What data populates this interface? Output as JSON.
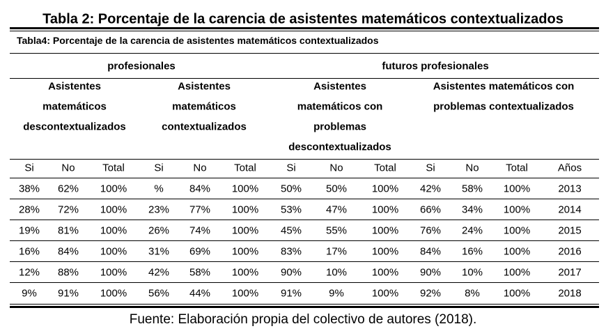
{
  "title": "Tabla 2: Porcentaje de la carencia de asistentes matemáticos contextualizados",
  "table": {
    "caption": "Tabla4: Porcentaje de la carencia de asistentes matemáticos  contextualizados",
    "top_headers": [
      "profesionales",
      "futuros profesionales"
    ],
    "group_headers": [
      [
        "Asistentes",
        "matemáticos",
        "descontextualizados"
      ],
      [
        "Asistentes",
        "matemáticos",
        "contextualizados"
      ],
      [
        "Asistentes",
        "matemáticos con",
        "problemas",
        "descontextualizados"
      ],
      [
        "Asistentes matemáticos con",
        "problemas contextualizados"
      ]
    ],
    "columns": [
      "Si",
      "No",
      "Total",
      "Si",
      "No",
      "Total",
      "Si",
      "No",
      "Total",
      "Si",
      "No",
      "Total",
      "Años"
    ],
    "rows": [
      [
        "38%",
        "62%",
        "100%",
        "%",
        "84%",
        "100%",
        "50%",
        "50%",
        "100%",
        "42%",
        "58%",
        "100%",
        "2013"
      ],
      [
        "28%",
        "72%",
        "100%",
        "23%",
        "77%",
        "100%",
        "53%",
        "47%",
        "100%",
        "66%",
        "34%",
        "100%",
        "2014"
      ],
      [
        "19%",
        "81%",
        "100%",
        "26%",
        "74%",
        "100%",
        "45%",
        "55%",
        "100%",
        "76%",
        "24%",
        "100%",
        "2015"
      ],
      [
        "16%",
        "84%",
        "100%",
        "31%",
        "69%",
        "100%",
        "83%",
        "17%",
        "100%",
        "84%",
        "16%",
        "100%",
        "2016"
      ],
      [
        "12%",
        "88%",
        "100%",
        "42%",
        "58%",
        "100%",
        "90%",
        "10%",
        "100%",
        "90%",
        "10%",
        "100%",
        "2017"
      ],
      [
        "9%",
        "91%",
        "100%",
        "56%",
        "44%",
        "100%",
        "91%",
        "9%",
        "100%",
        "92%",
        "8%",
        "100%",
        "2018"
      ]
    ]
  },
  "footer": "Fuente: Elaboración propia del colectivo de autores (2018)."
}
